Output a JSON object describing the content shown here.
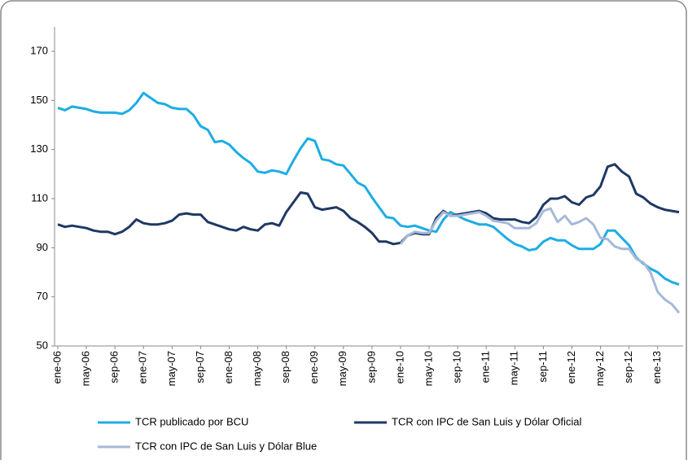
{
  "chart_data": {
    "type": "line",
    "categories": [
      "ene-06",
      null,
      null,
      null,
      "may-06",
      null,
      null,
      null,
      "sep-06",
      null,
      null,
      null,
      "ene-07",
      null,
      null,
      null,
      "may-07",
      null,
      null,
      null,
      "sep-07",
      null,
      null,
      null,
      "ene-08",
      null,
      null,
      null,
      "may-08",
      null,
      null,
      null,
      "sep-08",
      null,
      null,
      null,
      "ene-09",
      null,
      null,
      null,
      "may-09",
      null,
      null,
      null,
      "sep-09",
      null,
      null,
      null,
      "ene-10",
      null,
      null,
      null,
      "may-10",
      null,
      null,
      null,
      "sep-10",
      null,
      null,
      null,
      "ene-11",
      null,
      null,
      null,
      "may-11",
      null,
      null,
      null,
      "sep-11",
      null,
      null,
      null,
      "ene-12",
      null,
      null,
      null,
      "may-12",
      null,
      null,
      null,
      "sep-12",
      null,
      null,
      null,
      "ene-13",
      null,
      null,
      null
    ],
    "series": [
      {
        "name": "TCR publicado por BCU",
        "color": "#1cade4",
        "values": [
          147,
          146,
          147.5,
          147,
          146.5,
          145.5,
          145,
          145,
          145,
          144.5,
          146,
          149,
          153,
          151,
          149,
          148.5,
          147,
          146.5,
          146.5,
          144,
          139.5,
          138,
          133,
          133.5,
          132,
          129,
          126.5,
          124.5,
          121,
          120.5,
          121.5,
          121,
          120,
          125.5,
          130.5,
          134.5,
          133.5,
          126,
          125.5,
          124,
          123.5,
          120,
          116.5,
          115,
          110.5,
          106.5,
          102.5,
          102,
          99,
          98.5,
          99,
          98,
          97,
          96.5,
          101.5,
          104.5,
          103,
          101.5,
          100.5,
          99.5,
          99.5,
          98.5,
          96,
          93.5,
          91.5,
          90.5,
          89,
          89.5,
          92.5,
          94,
          93,
          93,
          91,
          89.5,
          89.5,
          89.5,
          91.5,
          97,
          97,
          94,
          91,
          86,
          83.5,
          81.5,
          80,
          77.5,
          76,
          75
        ]
      },
      {
        "name": "TCR con IPC de San Luis y Dólar Oficial",
        "color": "#1f3864",
        "values": [
          99.5,
          98.5,
          99,
          98.5,
          98,
          97,
          96.5,
          96.5,
          95.5,
          96.5,
          98.5,
          101.5,
          100,
          99.5,
          99.5,
          100,
          101,
          103.5,
          104,
          103.5,
          103.5,
          100.5,
          99.5,
          98.5,
          97.5,
          97,
          98.5,
          97.5,
          97,
          99.5,
          100,
          99,
          104.5,
          108.5,
          112.5,
          112,
          106.5,
          105.5,
          106,
          106.5,
          105,
          102,
          100.5,
          98.5,
          96,
          92.5,
          92.5,
          91.5,
          92,
          95,
          96,
          95.5,
          95.5,
          102,
          105,
          103,
          103.5,
          104,
          104.5,
          105,
          104,
          102,
          101.5,
          101.5,
          101.5,
          100.5,
          100,
          102.5,
          107.5,
          110,
          110,
          111,
          108.5,
          107.5,
          110.5,
          111.5,
          115,
          123,
          124,
          121,
          119,
          112,
          110.5,
          108,
          106.5,
          105.5,
          105,
          104.5
        ]
      },
      {
        "name": "TCR con IPC de San Luis y Dólar Blue",
        "color": "#a6b9d8",
        "values": [
          null,
          null,
          null,
          null,
          null,
          null,
          null,
          null,
          null,
          null,
          null,
          null,
          null,
          null,
          null,
          null,
          null,
          null,
          null,
          null,
          null,
          null,
          null,
          null,
          null,
          null,
          null,
          null,
          null,
          null,
          null,
          null,
          null,
          null,
          null,
          null,
          null,
          null,
          null,
          null,
          null,
          null,
          null,
          null,
          null,
          null,
          null,
          null,
          91.5,
          95,
          96.5,
          96,
          96,
          101,
          104.5,
          103,
          103,
          103.5,
          104,
          104.5,
          103,
          101,
          100.5,
          100,
          98,
          98,
          98,
          100,
          105,
          106,
          100.5,
          103,
          99.5,
          100.5,
          102,
          99.5,
          94,
          93.5,
          90.5,
          89.5,
          89.5,
          85.5,
          84,
          80,
          72,
          69,
          67,
          63.5
        ]
      }
    ],
    "ylim": [
      50,
      170
    ],
    "yticks": [
      50,
      70,
      90,
      110,
      130,
      150,
      170
    ],
    "legend": "bottom"
  }
}
